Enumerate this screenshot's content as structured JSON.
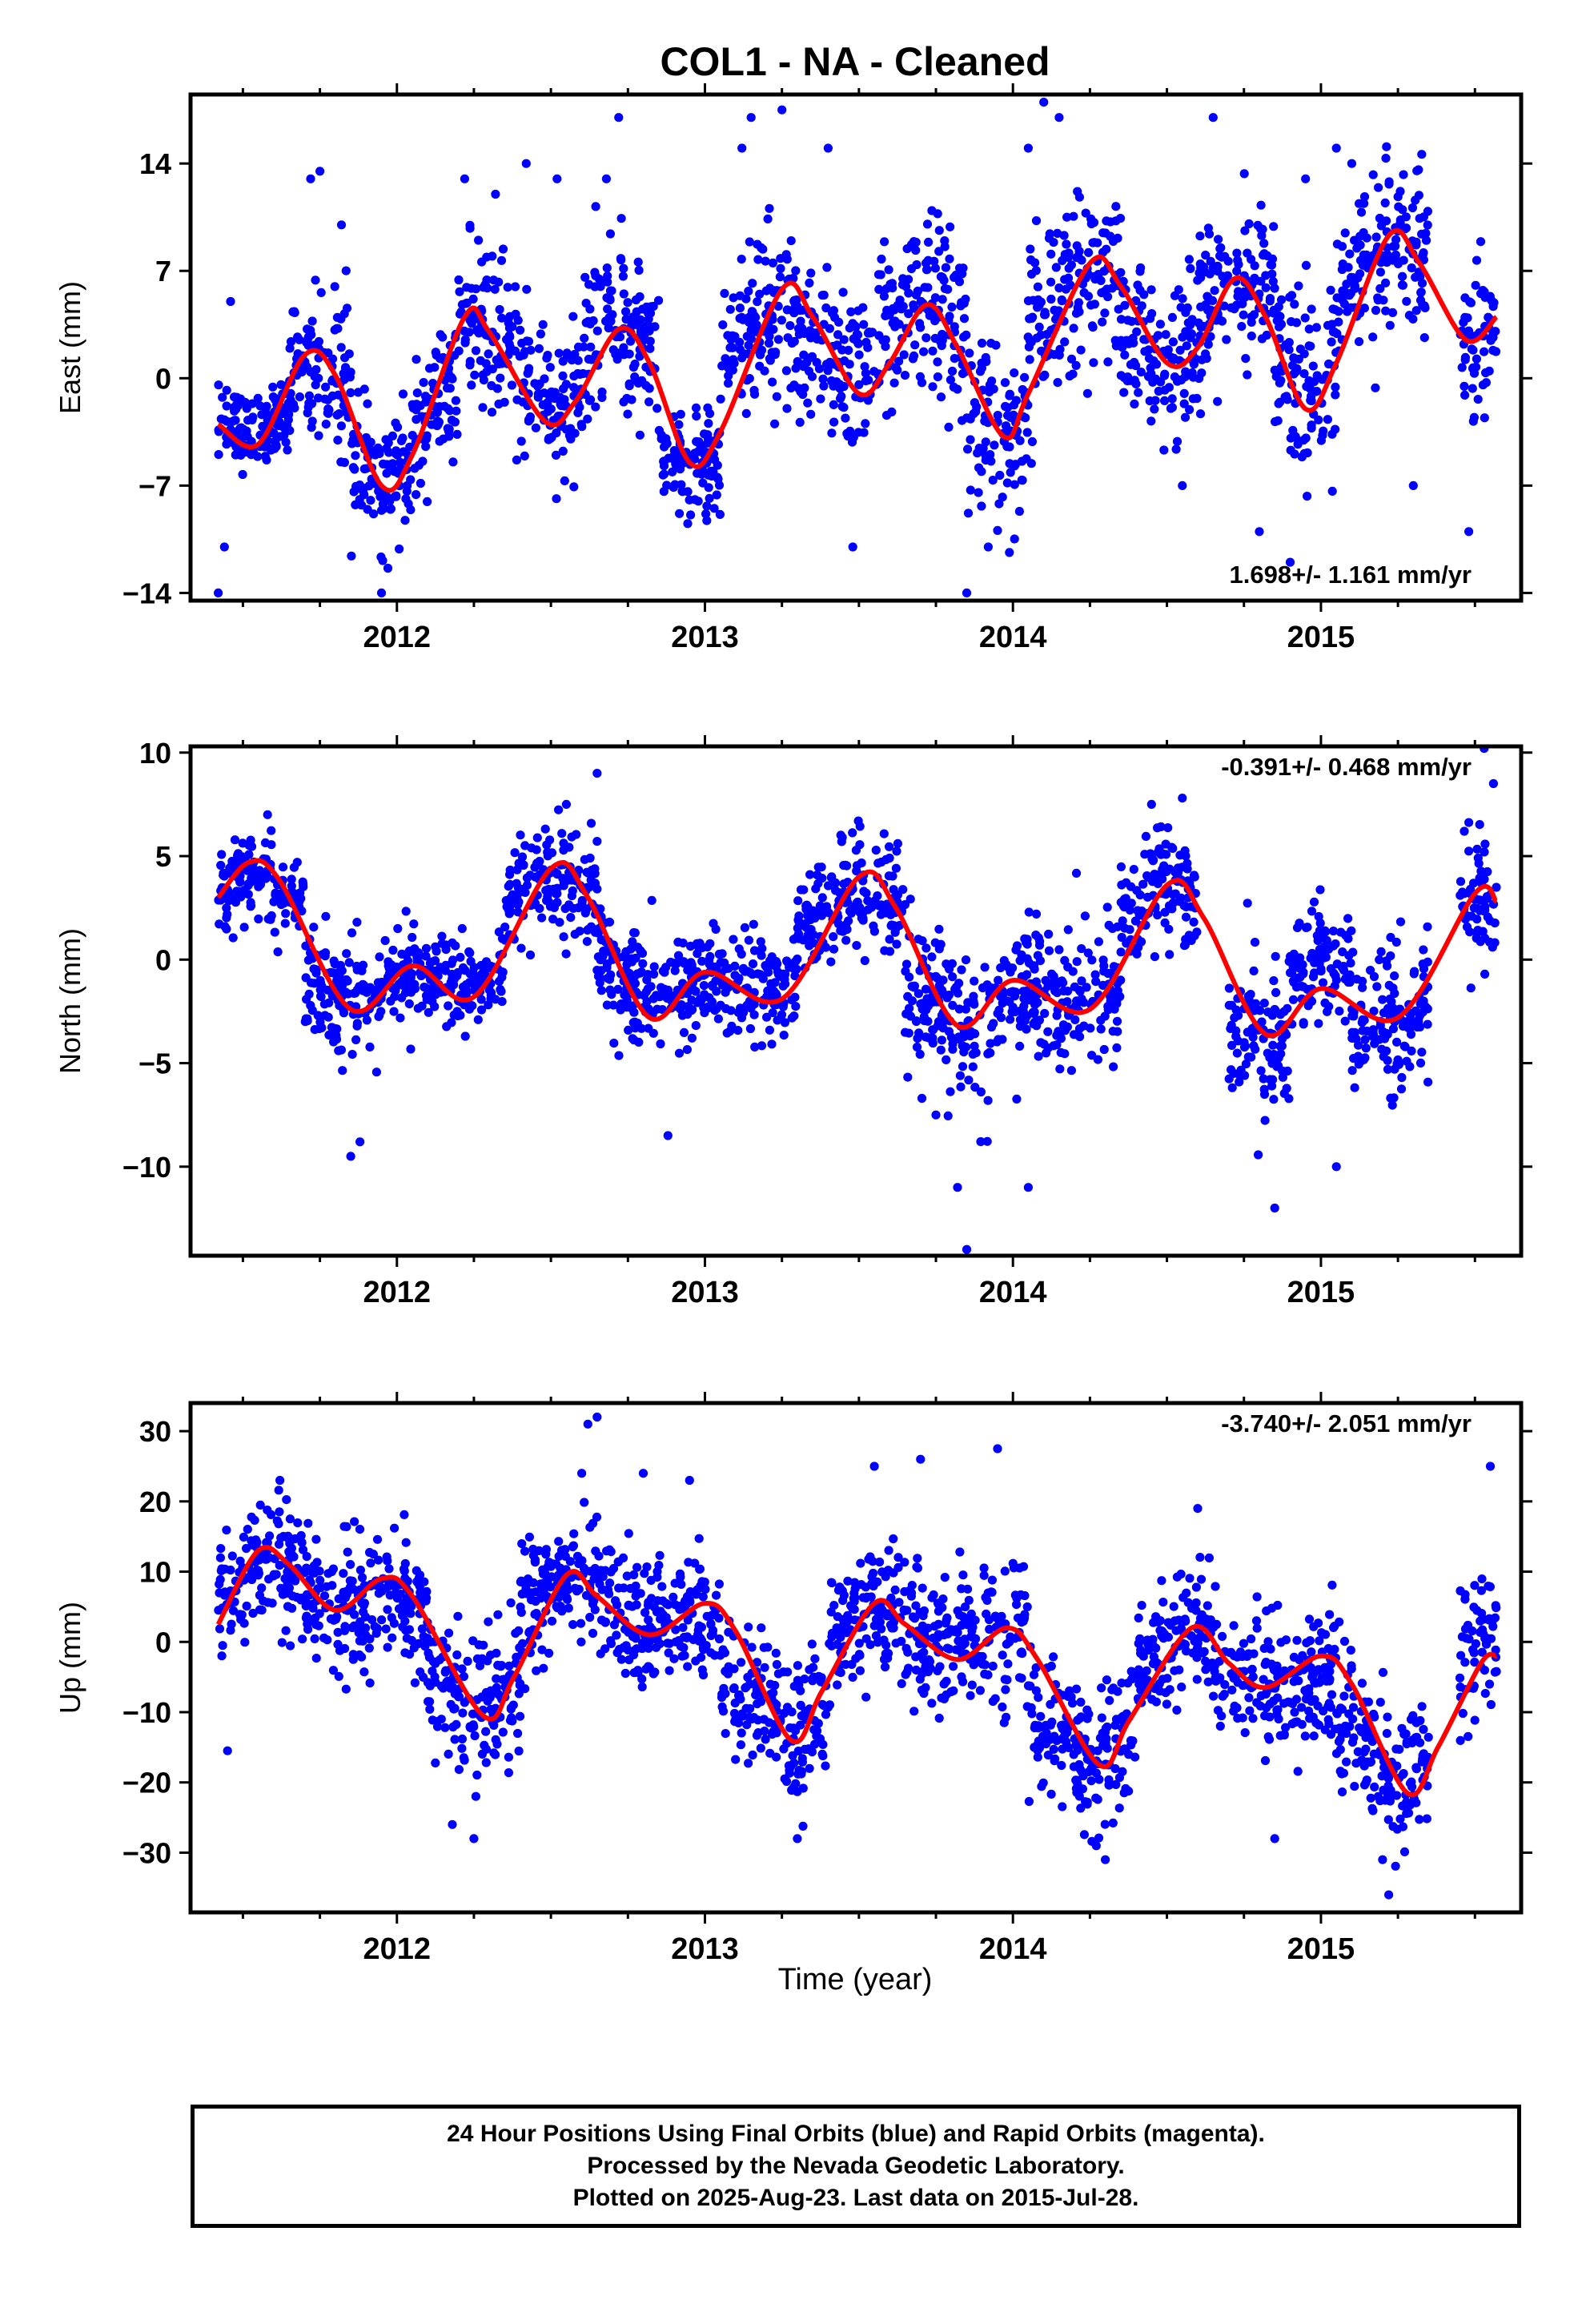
{
  "title": "COL1  - NA - Cleaned",
  "xlabel": "Time (year)",
  "footer": {
    "line1": "24 Hour Positions Using Final Orbits (blue) and Rapid Orbits (magenta).",
    "line2": "Processed by the Nevada Geodetic Laboratory.",
    "line3": "Plotted on 2025-Aug-23. Last data on 2015-Jul-28."
  },
  "colors": {
    "points": "#0000ff",
    "fit": "#ff0000",
    "axes": "#000000"
  },
  "chart_data": [
    {
      "type": "scatter",
      "name": "east",
      "ylabel": "East (mm)",
      "rate_label": "1.698+/- 1.161 mm/yr",
      "xlim": [
        2011.33,
        2015.65
      ],
      "ylim": [
        -14.5,
        18.5
      ],
      "xticks": [
        2012,
        2013,
        2014,
        2015
      ],
      "yticks": [
        -14,
        -7,
        0,
        7,
        14
      ],
      "data_range": [
        2011.42,
        2015.57
      ],
      "trend_mm_per_yr": 1.698,
      "fit_line": [
        [
          2011.42,
          -3.0
        ],
        [
          2011.55,
          -4.3
        ],
        [
          2011.7,
          1.5
        ],
        [
          2011.8,
          0.2
        ],
        [
          2011.95,
          -7.0
        ],
        [
          2012.05,
          -5.0
        ],
        [
          2012.22,
          4.0
        ],
        [
          2012.3,
          3.0
        ],
        [
          2012.48,
          -2.8
        ],
        [
          2012.58,
          -1.5
        ],
        [
          2012.72,
          3.2
        ],
        [
          2012.82,
          1.0
        ],
        [
          2012.95,
          -5.5
        ],
        [
          2013.05,
          -3.5
        ],
        [
          2013.25,
          5.8
        ],
        [
          2013.35,
          4.0
        ],
        [
          2013.5,
          -1.0
        ],
        [
          2013.6,
          1.0
        ],
        [
          2013.72,
          4.8
        ],
        [
          2013.82,
          2.0
        ],
        [
          2013.97,
          -3.8
        ],
        [
          2014.05,
          -1.0
        ],
        [
          2014.25,
          7.5
        ],
        [
          2014.35,
          6.0
        ],
        [
          2014.5,
          1.0
        ],
        [
          2014.6,
          2.0
        ],
        [
          2014.72,
          6.5
        ],
        [
          2014.82,
          4.0
        ],
        [
          2014.95,
          -2.0
        ],
        [
          2015.05,
          1.0
        ],
        [
          2015.22,
          9.3
        ],
        [
          2015.32,
          7.5
        ],
        [
          2015.47,
          2.5
        ],
        [
          2015.57,
          4.0
        ]
      ],
      "clusters": [
        [
          2011.42,
          2011.65,
          -3,
          2.2
        ],
        [
          2011.65,
          2011.85,
          1,
          4.5
        ],
        [
          2011.85,
          2012.05,
          -7,
          3.5
        ],
        [
          2012.05,
          2012.2,
          -3,
          4
        ],
        [
          2012.2,
          2012.4,
          3,
          5
        ],
        [
          2012.4,
          2012.6,
          -1,
          4
        ],
        [
          2012.6,
          2012.85,
          4,
          5
        ],
        [
          2012.85,
          2013.05,
          -7,
          3
        ],
        [
          2013.05,
          2013.3,
          5,
          5
        ],
        [
          2013.3,
          2013.55,
          0,
          5
        ],
        [
          2013.55,
          2013.85,
          5,
          5
        ],
        [
          2013.85,
          2014.05,
          -5,
          5
        ],
        [
          2014.05,
          2014.35,
          7,
          5
        ],
        [
          2014.35,
          2014.6,
          1,
          4.5
        ],
        [
          2014.6,
          2014.85,
          6,
          5
        ],
        [
          2014.85,
          2015.05,
          0,
          6
        ],
        [
          2015.05,
          2015.35,
          8,
          5
        ],
        [
          2015.45,
          2015.57,
          1,
          4
        ]
      ],
      "outliers": [
        [
          2011.42,
          -14
        ],
        [
          2011.44,
          -11
        ],
        [
          2011.46,
          5
        ],
        [
          2011.72,
          13
        ],
        [
          2011.75,
          13.5
        ],
        [
          2011.82,
          10
        ],
        [
          2011.95,
          -14
        ],
        [
          2012.22,
          13
        ],
        [
          2012.32,
          12
        ],
        [
          2012.42,
          14
        ],
        [
          2012.52,
          13
        ],
        [
          2012.68,
          13
        ],
        [
          2012.72,
          17
        ],
        [
          2013.12,
          15
        ],
        [
          2013.15,
          17
        ],
        [
          2013.25,
          17.5
        ],
        [
          2013.4,
          15
        ],
        [
          2013.48,
          -11
        ],
        [
          2013.85,
          -14
        ],
        [
          2013.92,
          -11
        ],
        [
          2014.05,
          15
        ],
        [
          2014.1,
          18
        ],
        [
          2014.15,
          17
        ],
        [
          2014.55,
          -7
        ],
        [
          2014.65,
          17
        ],
        [
          2014.8,
          -10
        ],
        [
          2014.9,
          -12
        ],
        [
          2014.95,
          13
        ],
        [
          2015.05,
          15
        ],
        [
          2015.1,
          14
        ],
        [
          2015.3,
          -7
        ],
        [
          2015.48,
          -10
        ]
      ]
    },
    {
      "type": "scatter",
      "name": "north",
      "ylabel": "North (mm)",
      "rate_label": "-0.391+/- 0.468 mm/yr",
      "xlim": [
        2011.33,
        2015.65
      ],
      "ylim": [
        -14.3,
        10.3
      ],
      "xticks": [
        2012,
        2013,
        2014,
        2015
      ],
      "yticks": [
        -10,
        -5,
        0,
        5,
        10
      ],
      "data_range": [
        2011.42,
        2015.57
      ],
      "trend_mm_per_yr": -0.391,
      "fit_line": [
        [
          2011.42,
          3.0
        ],
        [
          2011.52,
          4.7
        ],
        [
          2011.62,
          3.8
        ],
        [
          2011.85,
          -2.4
        ],
        [
          2012.05,
          -0.3
        ],
        [
          2012.25,
          -1.8
        ],
        [
          2012.5,
          4.4
        ],
        [
          2012.62,
          3.0
        ],
        [
          2012.82,
          -2.8
        ],
        [
          2013.0,
          -0.6
        ],
        [
          2013.25,
          -1.9
        ],
        [
          2013.5,
          4.0
        ],
        [
          2013.62,
          2.5
        ],
        [
          2013.82,
          -3.2
        ],
        [
          2014.0,
          -1.0
        ],
        [
          2014.25,
          -2.4
        ],
        [
          2014.5,
          3.6
        ],
        [
          2014.62,
          2.0
        ],
        [
          2014.82,
          -3.6
        ],
        [
          2015.0,
          -1.4
        ],
        [
          2015.25,
          -2.8
        ],
        [
          2015.5,
          3.2
        ],
        [
          2015.57,
          2.8
        ]
      ],
      "clusters": [
        [
          2011.42,
          2011.7,
          3.5,
          1.8
        ],
        [
          2011.7,
          2011.95,
          -2,
          2.5
        ],
        [
          2011.95,
          2012.35,
          -0.8,
          2
        ],
        [
          2012.35,
          2012.65,
          4,
          2.2
        ],
        [
          2012.65,
          2012.95,
          -1.5,
          2.5
        ],
        [
          2012.95,
          2013.3,
          -1.2,
          2.2
        ],
        [
          2013.3,
          2013.65,
          3,
          2.5
        ],
        [
          2013.65,
          2013.95,
          -3.5,
          3.5
        ],
        [
          2013.95,
          2014.35,
          -2,
          3
        ],
        [
          2014.35,
          2014.6,
          4,
          2.5
        ],
        [
          2014.7,
          2014.9,
          -5,
          3.5
        ],
        [
          2014.9,
          2015.1,
          0.5,
          3
        ],
        [
          2015.1,
          2015.35,
          -3.5,
          3
        ],
        [
          2015.45,
          2015.57,
          2.5,
          3.5
        ]
      ],
      "outliers": [
        [
          2011.58,
          7
        ],
        [
          2011.85,
          -9.5
        ],
        [
          2011.88,
          -8.8
        ],
        [
          2012.55,
          7.5
        ],
        [
          2012.65,
          9
        ],
        [
          2012.88,
          -8.5
        ],
        [
          2013.75,
          -7.5
        ],
        [
          2013.82,
          -11
        ],
        [
          2013.85,
          -14
        ],
        [
          2014.05,
          -11
        ],
        [
          2014.45,
          7.5
        ],
        [
          2014.55,
          7.8
        ],
        [
          2014.85,
          -12
        ],
        [
          2015.05,
          -10
        ],
        [
          2015.53,
          10.2
        ],
        [
          2015.56,
          8.5
        ]
      ]
    },
    {
      "type": "scatter",
      "name": "up",
      "ylabel": "Up (mm)",
      "rate_label": "-3.740+/- 2.051 mm/yr",
      "xlim": [
        2011.33,
        2015.65
      ],
      "ylim": [
        -38.5,
        34.0
      ],
      "xticks": [
        2012,
        2013,
        2014,
        2015
      ],
      "yticks": [
        -30,
        -20,
        -10,
        0,
        10,
        20,
        30
      ],
      "data_range": [
        2011.42,
        2015.57
      ],
      "trend_mm_per_yr": -3.74,
      "fit_line": [
        [
          2011.42,
          2.5
        ],
        [
          2011.55,
          13.0
        ],
        [
          2011.65,
          11.0
        ],
        [
          2011.8,
          4.5
        ],
        [
          2011.95,
          9.0
        ],
        [
          2012.05,
          6.5
        ],
        [
          2012.28,
          -10.5
        ],
        [
          2012.38,
          -5.0
        ],
        [
          2012.55,
          9.5
        ],
        [
          2012.65,
          6.5
        ],
        [
          2012.82,
          1.0
        ],
        [
          2013.0,
          5.5
        ],
        [
          2013.1,
          1.5
        ],
        [
          2013.28,
          -14.0
        ],
        [
          2013.38,
          -7.0
        ],
        [
          2013.55,
          5.5
        ],
        [
          2013.65,
          2.5
        ],
        [
          2013.82,
          -2.5
        ],
        [
          2013.98,
          2.0
        ],
        [
          2014.08,
          -2.5
        ],
        [
          2014.28,
          -17.5
        ],
        [
          2014.38,
          -11.0
        ],
        [
          2014.58,
          2.0
        ],
        [
          2014.7,
          -3.0
        ],
        [
          2014.82,
          -6.5
        ],
        [
          2015.0,
          -2.0
        ],
        [
          2015.1,
          -6.0
        ],
        [
          2015.28,
          -21.5
        ],
        [
          2015.38,
          -15.0
        ],
        [
          2015.52,
          -3.0
        ],
        [
          2015.57,
          -2.0
        ]
      ],
      "clusters": [
        [
          2011.42,
          2011.7,
          9,
          8
        ],
        [
          2011.7,
          2012.1,
          5,
          8
        ],
        [
          2012.1,
          2012.4,
          -10,
          9
        ],
        [
          2012.4,
          2012.7,
          10,
          8
        ],
        [
          2012.7,
          2013.05,
          3,
          8
        ],
        [
          2013.05,
          2013.4,
          -12,
          9
        ],
        [
          2013.4,
          2013.7,
          4,
          8
        ],
        [
          2013.7,
          2014.05,
          0,
          9
        ],
        [
          2014.05,
          2014.4,
          -17,
          9
        ],
        [
          2014.4,
          2014.65,
          2,
          8
        ],
        [
          2014.65,
          2015.05,
          -6,
          9
        ],
        [
          2015.05,
          2015.35,
          -18,
          9
        ],
        [
          2015.45,
          2015.57,
          0,
          10
        ]
      ],
      "outliers": [
        [
          2011.45,
          -15.5
        ],
        [
          2011.62,
          23
        ],
        [
          2012.18,
          -26
        ],
        [
          2012.25,
          -28
        ],
        [
          2012.6,
          24
        ],
        [
          2012.62,
          31
        ],
        [
          2012.65,
          32
        ],
        [
          2012.8,
          24
        ],
        [
          2012.95,
          23
        ],
        [
          2013.3,
          -28
        ],
        [
          2013.55,
          25
        ],
        [
          2013.7,
          26
        ],
        [
          2013.95,
          27.5
        ],
        [
          2014.3,
          -31
        ],
        [
          2014.6,
          19
        ],
        [
          2014.85,
          -28
        ],
        [
          2015.2,
          -31
        ],
        [
          2015.22,
          -36
        ],
        [
          2015.55,
          25
        ]
      ]
    }
  ]
}
